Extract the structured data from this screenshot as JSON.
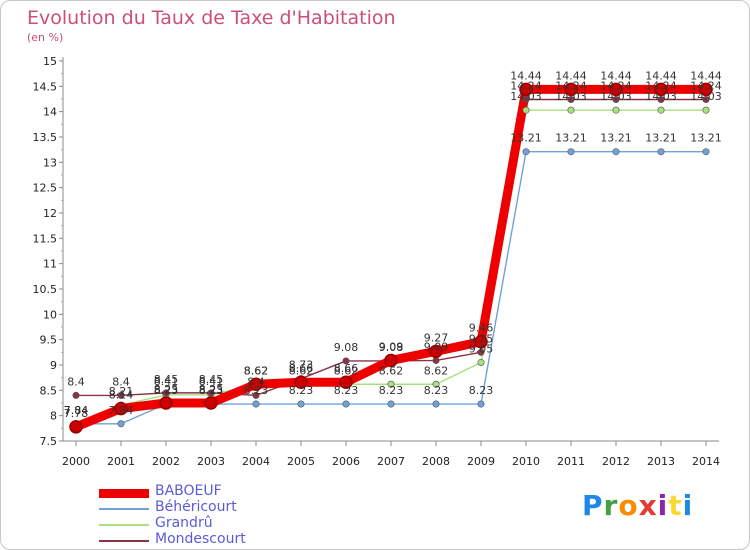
{
  "title": "Evolution du Taux de Taxe d'Habitation",
  "subtitle": "(en %)",
  "logo": {
    "text": "Proxiti",
    "letters": [
      "P",
      "r",
      "o",
      "x",
      "i",
      "t",
      "i"
    ],
    "colors": [
      "#1e88e5",
      "#43a047",
      "#fb8c00",
      "#e53935",
      "#8e24aa",
      "#fdd835",
      "#1e88e5"
    ]
  },
  "chart_data": {
    "type": "line",
    "x": [
      "2000",
      "2001",
      "2002",
      "2003",
      "2004",
      "2005",
      "2006",
      "2007",
      "2008",
      "2009",
      "2010",
      "2011",
      "2012",
      "2013",
      "2014"
    ],
    "ylim": [
      7.5,
      15
    ],
    "yticks": [
      "7.5",
      "8",
      "8.5",
      "9",
      "9.5",
      "10",
      "10.5",
      "11",
      "11.5",
      "12",
      "12.5",
      "13",
      "13.5",
      "14",
      "14.5",
      "15"
    ],
    "grid": false,
    "legend_position": "bottom-left",
    "series": [
      {
        "name": "BABOEUF",
        "color": "#ee0000",
        "values": [
          7.78,
          8.14,
          8.25,
          8.25,
          8.62,
          8.66,
          8.66,
          9.09,
          9.27,
          9.46,
          14.44,
          14.44,
          14.44,
          14.44,
          14.44
        ]
      },
      {
        "name": "Béhéricourt",
        "color": "#6fa3d8",
        "values": [
          7.84,
          7.84,
          8.23,
          8.23,
          8.23,
          8.23,
          8.23,
          8.23,
          8.23,
          8.23,
          13.21,
          13.21,
          13.21,
          13.21,
          13.21
        ]
      },
      {
        "name": "Grandrû",
        "color": "#a8e080",
        "values": [
          7.84,
          8.21,
          8.41,
          8.41,
          8.62,
          8.62,
          8.62,
          8.62,
          8.62,
          9.05,
          14.03,
          14.03,
          14.03,
          14.03,
          14.03
        ]
      },
      {
        "name": "Mondescourt",
        "color": "#8a3344",
        "values": [
          8.4,
          8.4,
          8.45,
          8.45,
          8.4,
          8.73,
          9.08,
          9.08,
          9.09,
          9.25,
          14.24,
          14.24,
          14.24,
          14.24,
          14.24
        ]
      }
    ],
    "data_labels": [
      [
        "7.78",
        "8.14",
        "8.25",
        "8.25",
        "8.62",
        "8.66",
        "8.66",
        "9.09",
        "9.27",
        "9.46",
        "14.44",
        "14.44",
        "14.44",
        "14.44",
        "14.44"
      ],
      [
        "7.84",
        "7.84",
        "8.23",
        "8.23",
        "8.23",
        "8.23",
        "8.23",
        "8.23",
        "8.23",
        "8.23",
        "13.21",
        "13.21",
        "13.21",
        "13.21",
        "13.21"
      ],
      [
        "7.84",
        "8.21",
        "8.41",
        "8.41",
        "8.62",
        "8.62",
        "8.62",
        "8.62",
        "8.62",
        "9.05",
        "14.03",
        "14.03",
        "14.03",
        "14.03",
        "14.03"
      ],
      [
        "8.4",
        "8.4",
        "8.45",
        "8.45",
        "8.4",
        "8.73",
        "9.08",
        "9.08",
        "9.09",
        "9.25",
        "14.24",
        "14.24",
        "14.24",
        "14.24",
        "14.24"
      ]
    ]
  }
}
